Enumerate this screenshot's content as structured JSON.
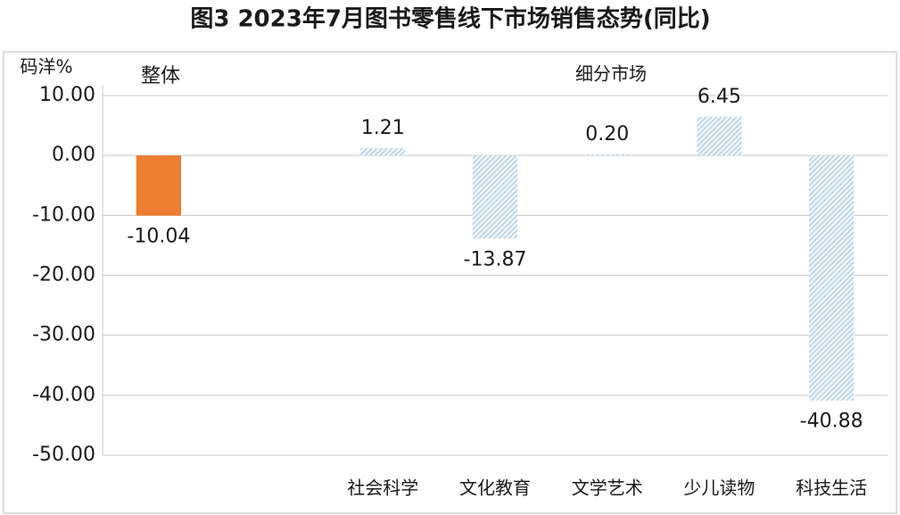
{
  "chart_data": {
    "type": "bar",
    "title": "图3 2023年7月图书零售线下市场销售态势(同比)",
    "y_label": "码洋%",
    "annotations": [
      "整体",
      "细分市场"
    ],
    "categories": [
      null,
      null,
      "社会科学",
      "文化教育",
      "文学艺术",
      "少儿读物",
      "科技生活"
    ],
    "values": [
      -10.04,
      null,
      1.21,
      -13.87,
      0.2,
      6.45,
      -40.88
    ],
    "value_labels": [
      "-10.04",
      null,
      "1.21",
      "-13.87",
      "0.20",
      "6.45",
      "-40.88"
    ],
    "colors": [
      "#ed7d31",
      null,
      "#9fc2dc",
      "#9fc2dc",
      "#9fc2dc",
      "#9fc2dc",
      "#9fc2dc"
    ],
    "patterns": [
      "solid",
      null,
      "hatched",
      "hatched",
      "hatched",
      "hatched",
      "hatched"
    ],
    "ylim": [
      -50,
      10
    ],
    "yticks": [
      {
        "value": 10,
        "label": "10.00"
      },
      {
        "value": 0,
        "label": "0.00"
      },
      {
        "value": -10,
        "label": "-10.00"
      },
      {
        "value": -20,
        "label": "-20.00"
      },
      {
        "value": -30,
        "label": "-30.00"
      },
      {
        "value": -40,
        "label": "-40.00"
      },
      {
        "value": -50,
        "label": "-50.00"
      }
    ],
    "grid": true
  }
}
